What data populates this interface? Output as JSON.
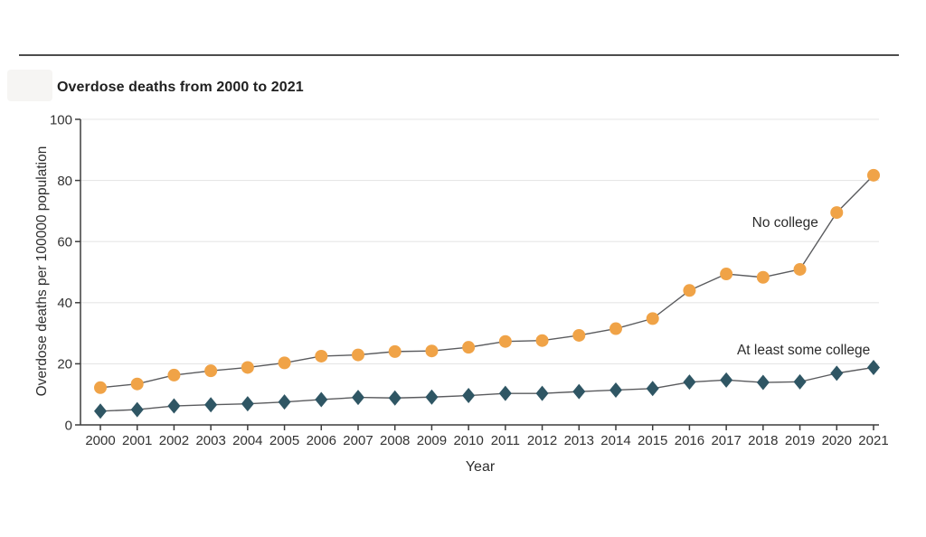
{
  "page": {
    "background": "#ffffff",
    "top_rule_color": "#4d4d4d"
  },
  "chart_data": {
    "type": "line",
    "title": "Overdose deaths from 2000 to 2021",
    "xlabel": "Year",
    "ylabel": "Overdose deaths per 100000 population",
    "x": [
      2000,
      2001,
      2002,
      2003,
      2004,
      2005,
      2006,
      2007,
      2008,
      2009,
      2010,
      2011,
      2012,
      2013,
      2014,
      2015,
      2016,
      2017,
      2018,
      2019,
      2020,
      2021
    ],
    "series": [
      {
        "name": "No college",
        "marker": "circle",
        "marker_color": "#F0A347",
        "values": [
          12.2,
          13.4,
          16.3,
          17.7,
          18.8,
          20.3,
          22.5,
          22.9,
          24.0,
          24.2,
          25.4,
          27.3,
          27.6,
          29.3,
          31.5,
          34.8,
          44.0,
          49.4,
          48.3,
          50.9,
          69.5,
          81.7
        ]
      },
      {
        "name": "At least some college",
        "marker": "diamond",
        "marker_color": "#2F5664",
        "values": [
          4.5,
          5.0,
          6.2,
          6.6,
          6.9,
          7.5,
          8.3,
          9.0,
          8.8,
          9.1,
          9.6,
          10.3,
          10.3,
          10.9,
          11.4,
          11.9,
          14.0,
          14.7,
          13.9,
          14.1,
          16.9,
          18.8
        ]
      }
    ],
    "ylim": [
      0,
      100
    ],
    "yticks": [
      0,
      20,
      40,
      60,
      80,
      100
    ],
    "grid": true,
    "legend_position": "inline-annotations",
    "annotations": [
      {
        "text": "No college",
        "x": 2018.6,
        "y": 66.0
      },
      {
        "text": "At least some college",
        "x": 2019.1,
        "y": 24.3
      }
    ],
    "colors": {
      "line": "#5a5b5e",
      "grid": "#e6e6e6",
      "axis": "#3d3d3d",
      "tick_text": "#333333"
    }
  }
}
